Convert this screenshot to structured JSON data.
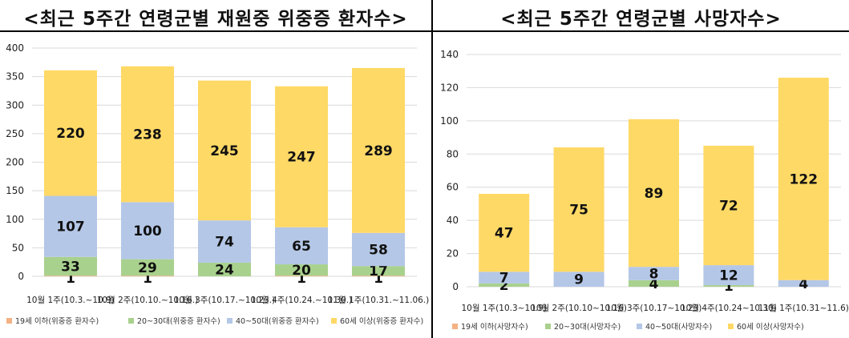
{
  "chart_data": [
    {
      "type": "bar",
      "stacked": true,
      "title": "<최근 5주간 연령군별 재원중 위중증 환자수>",
      "categories": [
        "10월 1주(10.3.~10.9)",
        "10월 2주(10.10.~10.16.)",
        "10월 3주(10.17.~10.23.)",
        "10월 4주(10.24.~10.30.)",
        "11월 1주(10.31.~11.06.)"
      ],
      "ylim": [
        0,
        400
      ],
      "yticks": [
        0,
        50,
        100,
        150,
        200,
        250,
        300,
        350,
        400
      ],
      "grid": true,
      "legend_position": "bottom",
      "series": [
        {
          "name": "19세 이하(위중증 환자수)",
          "color": "#f4b183",
          "values": [
            1,
            1,
            0,
            1,
            1
          ],
          "labels": [
            "1",
            "1",
            "",
            "1",
            "1"
          ]
        },
        {
          "name": "20~30대(위중증 환자수)",
          "color": "#a9d18e",
          "values": [
            33,
            29,
            24,
            20,
            17
          ],
          "labels": [
            "33",
            "29",
            "24",
            "20",
            "17"
          ]
        },
        {
          "name": "40~50대(위중증 환자수)",
          "color": "#b4c7e7",
          "values": [
            107,
            100,
            74,
            65,
            58
          ],
          "labels": [
            "107",
            "100",
            "74",
            "65",
            "58"
          ]
        },
        {
          "name": "60세 이상(위중증 환자수)",
          "color": "#ffd966",
          "values": [
            220,
            238,
            245,
            247,
            289
          ],
          "labels": [
            "220",
            "238",
            "245",
            "247",
            "289"
          ]
        }
      ]
    },
    {
      "type": "bar",
      "stacked": true,
      "title": "<최근 5주간 연령군별 사망자수>",
      "categories": [
        "10월 1주(10.3~10.9)",
        "10월 2주(10.10~10.16)",
        "10월 3주(10.17~10.23)",
        "10월 4주(10.24~10.30)",
        "11월 1주(10.31~11.6)"
      ],
      "ylim": [
        0,
        140
      ],
      "yticks": [
        0,
        20,
        40,
        60,
        80,
        100,
        120,
        140
      ],
      "grid": true,
      "legend_position": "bottom",
      "series": [
        {
          "name": "19세 이하(사망자수)",
          "color": "#f4b183",
          "values": [
            0,
            0,
            0,
            0,
            0
          ],
          "labels": [
            "",
            "",
            "",
            "",
            ""
          ]
        },
        {
          "name": "20~30대(사망자수)",
          "color": "#a9d18e",
          "values": [
            2,
            0,
            4,
            1,
            0
          ],
          "labels": [
            "2",
            "",
            "4",
            "1",
            ""
          ]
        },
        {
          "name": "40~50대(사망자수)",
          "color": "#b4c7e7",
          "values": [
            7,
            9,
            8,
            12,
            4
          ],
          "labels": [
            "7",
            "9",
            "8",
            "12",
            "4"
          ]
        },
        {
          "name": "60세 이상(사망자수)",
          "color": "#ffd966",
          "values": [
            47,
            75,
            89,
            72,
            122
          ],
          "labels": [
            "47",
            "75",
            "89",
            "72",
            "122"
          ]
        }
      ]
    }
  ]
}
